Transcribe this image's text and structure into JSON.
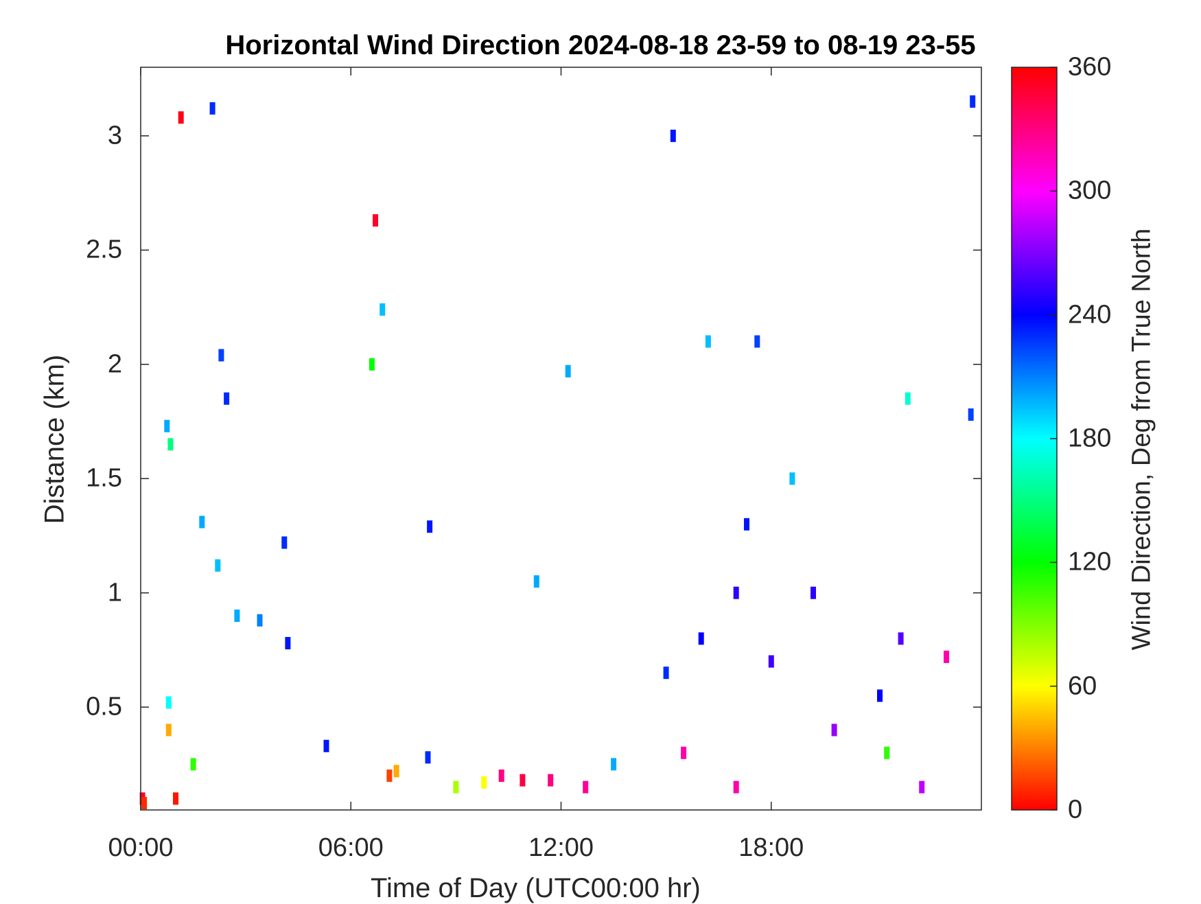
{
  "chart_data": {
    "type": "heatmap",
    "title": "Horizontal Wind Direction 2024-08-18 23-59 to 08-19 23-55",
    "xlabel": "Time of Day (UTC00:00 hr)",
    "ylabel": "Distance (km)",
    "x_unit": "hours UTC",
    "xlim": [
      0,
      24
    ],
    "ylim": [
      0.05,
      3.3
    ],
    "xticks": [
      0,
      6,
      12,
      18
    ],
    "xtick_labels": [
      "00:00",
      "06:00",
      "12:00",
      "18:00"
    ],
    "yticks": [
      0.5,
      1,
      1.5,
      2,
      2.5,
      3
    ],
    "ytick_labels": [
      "0.5",
      "1",
      "1.5",
      "2",
      "2.5",
      "3"
    ],
    "colorbar": {
      "label": "Wind Direction, Deg from True North",
      "range": [
        0,
        360
      ],
      "ticks": [
        0,
        60,
        120,
        180,
        240,
        300,
        360
      ],
      "colormap": "hsv",
      "colors": [
        "#ff0000",
        "#ffff00",
        "#00ff00",
        "#00ffff",
        "#0000ff",
        "#ff00ff",
        "#ff0000"
      ]
    },
    "grid": false,
    "cells": [
      {
        "t": 0.05,
        "d": 0.1,
        "dir": 350
      },
      {
        "t": 0.1,
        "d": 0.08,
        "dir": 10
      },
      {
        "t": 0.75,
        "d": 1.73,
        "dir": 200
      },
      {
        "t": 0.85,
        "d": 1.65,
        "dir": 150
      },
      {
        "t": 0.8,
        "d": 0.4,
        "dir": 40
      },
      {
        "t": 0.8,
        "d": 0.52,
        "dir": 180
      },
      {
        "t": 1.0,
        "d": 0.1,
        "dir": 5
      },
      {
        "t": 1.15,
        "d": 3.08,
        "dir": 355
      },
      {
        "t": 1.5,
        "d": 0.25,
        "dir": 110
      },
      {
        "t": 1.75,
        "d": 1.31,
        "dir": 200
      },
      {
        "t": 2.05,
        "d": 3.12,
        "dir": 230
      },
      {
        "t": 2.2,
        "d": 1.12,
        "dir": 195
      },
      {
        "t": 2.3,
        "d": 2.04,
        "dir": 225
      },
      {
        "t": 2.45,
        "d": 1.85,
        "dir": 230
      },
      {
        "t": 2.75,
        "d": 0.9,
        "dir": 200
      },
      {
        "t": 3.4,
        "d": 0.88,
        "dir": 210
      },
      {
        "t": 4.1,
        "d": 1.22,
        "dir": 230
      },
      {
        "t": 4.2,
        "d": 0.78,
        "dir": 235
      },
      {
        "t": 5.3,
        "d": 0.33,
        "dir": 235
      },
      {
        "t": 6.6,
        "d": 2.0,
        "dir": 120
      },
      {
        "t": 6.7,
        "d": 2.63,
        "dir": 350
      },
      {
        "t": 6.9,
        "d": 2.24,
        "dir": 195
      },
      {
        "t": 7.1,
        "d": 0.2,
        "dir": 15
      },
      {
        "t": 7.3,
        "d": 0.22,
        "dir": 40
      },
      {
        "t": 8.2,
        "d": 0.28,
        "dir": 230
      },
      {
        "t": 8.25,
        "d": 1.29,
        "dir": 235
      },
      {
        "t": 9.0,
        "d": 0.15,
        "dir": 80
      },
      {
        "t": 9.8,
        "d": 0.17,
        "dir": 60
      },
      {
        "t": 10.3,
        "d": 0.2,
        "dir": 330
      },
      {
        "t": 10.9,
        "d": 0.18,
        "dir": 345
      },
      {
        "t": 11.3,
        "d": 1.05,
        "dir": 200
      },
      {
        "t": 11.7,
        "d": 0.18,
        "dir": 330
      },
      {
        "t": 12.2,
        "d": 1.97,
        "dir": 200
      },
      {
        "t": 12.7,
        "d": 0.15,
        "dir": 325
      },
      {
        "t": 13.5,
        "d": 0.25,
        "dir": 200
      },
      {
        "t": 15.2,
        "d": 3.0,
        "dir": 235
      },
      {
        "t": 15.0,
        "d": 0.65,
        "dir": 230
      },
      {
        "t": 15.5,
        "d": 0.3,
        "dir": 320
      },
      {
        "t": 16.0,
        "d": 0.8,
        "dir": 240
      },
      {
        "t": 16.2,
        "d": 2.1,
        "dir": 195
      },
      {
        "t": 17.0,
        "d": 1.0,
        "dir": 250
      },
      {
        "t": 17.0,
        "d": 0.15,
        "dir": 320
      },
      {
        "t": 17.3,
        "d": 1.3,
        "dir": 235
      },
      {
        "t": 17.6,
        "d": 2.1,
        "dir": 225
      },
      {
        "t": 18.0,
        "d": 0.7,
        "dir": 255
      },
      {
        "t": 18.6,
        "d": 1.5,
        "dir": 195
      },
      {
        "t": 19.2,
        "d": 1.0,
        "dir": 250
      },
      {
        "t": 19.8,
        "d": 0.4,
        "dir": 275
      },
      {
        "t": 21.1,
        "d": 0.55,
        "dir": 240
      },
      {
        "t": 21.3,
        "d": 0.3,
        "dir": 110
      },
      {
        "t": 21.7,
        "d": 0.8,
        "dir": 260
      },
      {
        "t": 21.9,
        "d": 1.85,
        "dir": 170
      },
      {
        "t": 22.3,
        "d": 0.15,
        "dir": 285
      },
      {
        "t": 23.0,
        "d": 0.72,
        "dir": 320
      },
      {
        "t": 23.7,
        "d": 1.78,
        "dir": 225
      },
      {
        "t": 23.75,
        "d": 3.15,
        "dir": 230
      }
    ]
  }
}
